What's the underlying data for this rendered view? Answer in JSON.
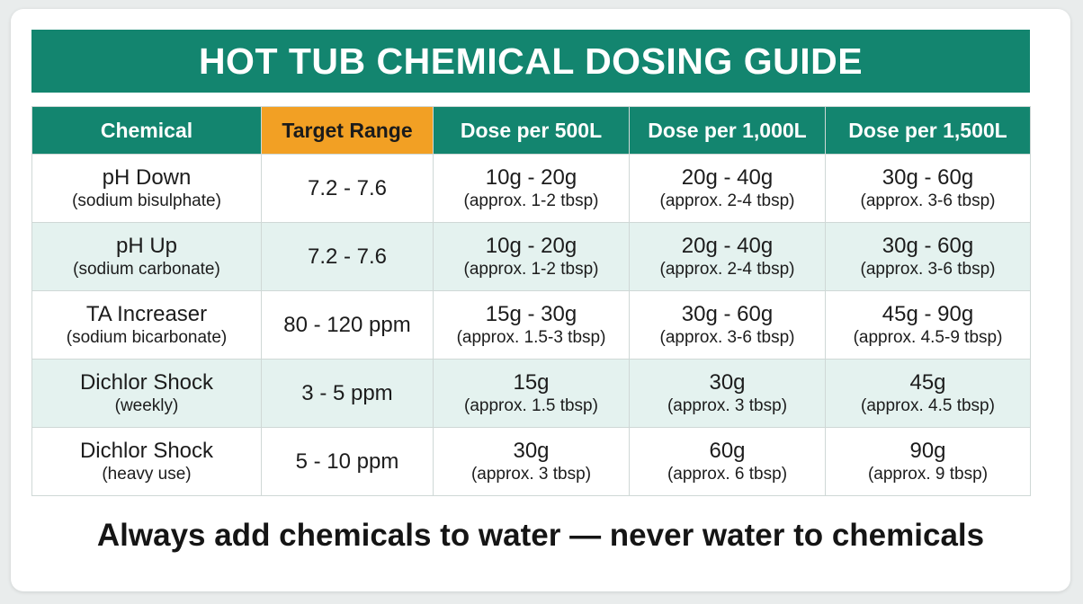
{
  "title": "HOT TUB CHEMICAL DOSING GUIDE",
  "colors": {
    "header_green": "#13856f",
    "highlight_orange": "#f2a024",
    "alt_row": "#e4f2ef"
  },
  "table": {
    "headers": [
      "Chemical",
      "Target Range",
      "Dose per 500L",
      "Dose per 1,000L",
      "Dose per 1,500L"
    ],
    "rows": [
      {
        "chemical": "pH Down",
        "chemical_sub": "(sodium bisulphate)",
        "range": "7.2 - 7.6",
        "dose500": "10g - 20g",
        "dose500_sub": "(approx. 1-2 tbsp)",
        "dose1000": "20g - 40g",
        "dose1000_sub": "(approx. 2-4 tbsp)",
        "dose1500": "30g - 60g",
        "dose1500_sub": "(approx. 3-6 tbsp)"
      },
      {
        "chemical": "pH Up",
        "chemical_sub": "(sodium carbonate)",
        "range": "7.2 - 7.6",
        "dose500": "10g - 20g",
        "dose500_sub": "(approx. 1-2 tbsp)",
        "dose1000": "20g - 40g",
        "dose1000_sub": "(approx. 2-4 tbsp)",
        "dose1500": "30g - 60g",
        "dose1500_sub": "(approx. 3-6 tbsp)"
      },
      {
        "chemical": "TA Increaser",
        "chemical_sub": "(sodium bicarbonate)",
        "range": "80 - 120 ppm",
        "dose500": "15g - 30g",
        "dose500_sub": "(approx. 1.5-3 tbsp)",
        "dose1000": "30g - 60g",
        "dose1000_sub": "(approx. 3-6 tbsp)",
        "dose1500": "45g - 90g",
        "dose1500_sub": "(approx. 4.5-9 tbsp)"
      },
      {
        "chemical": "Dichlor Shock",
        "chemical_sub": "(weekly)",
        "range": "3 - 5 ppm",
        "dose500": "15g",
        "dose500_sub": "(approx. 1.5 tbsp)",
        "dose1000": "30g",
        "dose1000_sub": "(approx. 3 tbsp)",
        "dose1500": "45g",
        "dose1500_sub": "(approx. 4.5 tbsp)"
      },
      {
        "chemical": "Dichlor Shock",
        "chemical_sub": "(heavy use)",
        "range": "5 - 10 ppm",
        "dose500": "30g",
        "dose500_sub": "(approx. 3 tbsp)",
        "dose1000": "60g",
        "dose1000_sub": "(approx. 6 tbsp)",
        "dose1500": "90g",
        "dose1500_sub": "(approx. 9 tbsp)"
      }
    ]
  },
  "footer": "Always add chemicals to water — never water to chemicals"
}
